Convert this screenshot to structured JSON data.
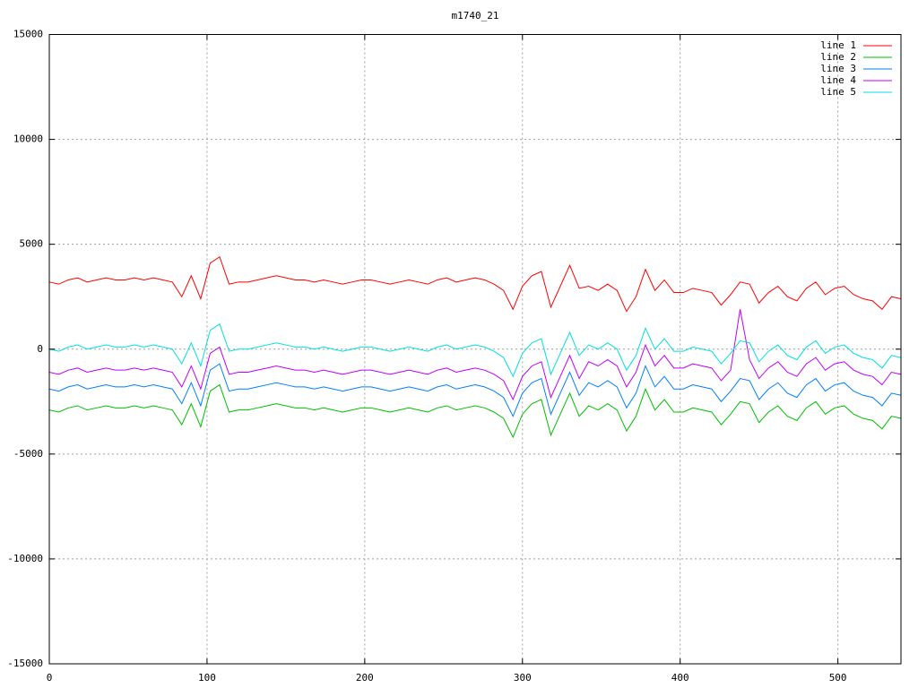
{
  "chart_data": {
    "type": "line",
    "title": "m1740_21",
    "x": [
      0,
      6,
      12,
      18,
      24,
      30,
      36,
      42,
      48,
      54,
      60,
      66,
      72,
      78,
      84,
      90,
      96,
      102,
      108,
      114,
      120,
      126,
      132,
      138,
      144,
      150,
      156,
      162,
      168,
      174,
      180,
      186,
      192,
      198,
      204,
      210,
      216,
      222,
      228,
      234,
      240,
      246,
      252,
      258,
      264,
      270,
      276,
      282,
      288,
      294,
      300,
      306,
      312,
      318,
      324,
      330,
      336,
      342,
      348,
      354,
      360,
      366,
      372,
      378,
      384,
      390,
      396,
      402,
      408,
      414,
      420,
      426,
      432,
      438,
      444,
      450,
      456,
      462,
      468,
      474,
      480,
      486,
      492,
      498,
      504,
      510,
      516,
      522,
      528,
      534,
      540
    ],
    "series": [
      {
        "name": "line 1",
        "color": "#ff0000",
        "values": [
          3200,
          3100,
          3300,
          3400,
          3200,
          3300,
          3400,
          3300,
          3300,
          3400,
          3300,
          3400,
          3300,
          3200,
          2500,
          3500,
          2400,
          4100,
          4400,
          3100,
          3200,
          3200,
          3300,
          3400,
          3500,
          3400,
          3300,
          3300,
          3200,
          3300,
          3200,
          3100,
          3200,
          3300,
          3300,
          3200,
          3100,
          3200,
          3300,
          3200,
          3100,
          3300,
          3400,
          3200,
          3300,
          3400,
          3300,
          3100,
          2800,
          1900,
          3000,
          3500,
          3700,
          2000,
          3000,
          4000,
          2900,
          3000,
          2800,
          3100,
          2800,
          1800,
          2500,
          3800,
          2800,
          3300,
          2700,
          2700,
          2900,
          2800,
          2700,
          2100,
          2600,
          3200,
          3100,
          2200,
          2700,
          3000,
          2500,
          2300,
          2900,
          3200,
          2600,
          2900,
          3000,
          2600,
          2400,
          2300,
          1900,
          2500,
          2400
        ]
      },
      {
        "name": "line 2",
        "color": "#00c000",
        "values": [
          -2900,
          -3000,
          -2800,
          -2700,
          -2900,
          -2800,
          -2700,
          -2800,
          -2800,
          -2700,
          -2800,
          -2700,
          -2800,
          -2900,
          -3600,
          -2600,
          -3700,
          -2000,
          -1700,
          -3000,
          -2900,
          -2900,
          -2800,
          -2700,
          -2600,
          -2700,
          -2800,
          -2800,
          -2900,
          -2800,
          -2900,
          -3000,
          -2900,
          -2800,
          -2800,
          -2900,
          -3000,
          -2900,
          -2800,
          -2900,
          -3000,
          -2800,
          -2700,
          -2900,
          -2800,
          -2700,
          -2800,
          -3000,
          -3300,
          -4200,
          -3100,
          -2600,
          -2400,
          -4100,
          -3100,
          -2100,
          -3200,
          -2700,
          -2900,
          -2600,
          -2900,
          -3900,
          -3200,
          -1900,
          -2900,
          -2400,
          -3000,
          -3000,
          -2800,
          -2900,
          -3000,
          -3600,
          -3100,
          -2500,
          -2600,
          -3500,
          -3000,
          -2700,
          -3200,
          -3400,
          -2800,
          -2500,
          -3100,
          -2800,
          -2700,
          -3100,
          -3300,
          -3400,
          -3800,
          -3200,
          -3300
        ]
      },
      {
        "name": "line 3",
        "color": "#0080ff",
        "values": [
          -1900,
          -2000,
          -1800,
          -1700,
          -1900,
          -1800,
          -1700,
          -1800,
          -1800,
          -1700,
          -1800,
          -1700,
          -1800,
          -1900,
          -2600,
          -1600,
          -2700,
          -1000,
          -700,
          -2000,
          -1900,
          -1900,
          -1800,
          -1700,
          -1600,
          -1700,
          -1800,
          -1800,
          -1900,
          -1800,
          -1900,
          -2000,
          -1900,
          -1800,
          -1800,
          -1900,
          -2000,
          -1900,
          -1800,
          -1900,
          -2000,
          -1800,
          -1700,
          -1900,
          -1800,
          -1700,
          -1800,
          -2000,
          -2300,
          -3200,
          -2100,
          -1600,
          -1400,
          -3100,
          -2100,
          -1100,
          -2200,
          -1600,
          -1800,
          -1500,
          -1800,
          -2800,
          -2100,
          -800,
          -1800,
          -1300,
          -1900,
          -1900,
          -1700,
          -1800,
          -1900,
          -2500,
          -2000,
          -1400,
          -1500,
          -2400,
          -1900,
          -1600,
          -2100,
          -2300,
          -1700,
          -1400,
          -2000,
          -1700,
          -1600,
          -2000,
          -2200,
          -2300,
          -2700,
          -2100,
          -2200
        ]
      },
      {
        "name": "line 4",
        "color": "#c000ff",
        "values": [
          -1100,
          -1200,
          -1000,
          -900,
          -1100,
          -1000,
          -900,
          -1000,
          -1000,
          -900,
          -1000,
          -900,
          -1000,
          -1100,
          -1800,
          -800,
          -1900,
          -200,
          100,
          -1200,
          -1100,
          -1100,
          -1000,
          -900,
          -800,
          -900,
          -1000,
          -1000,
          -1100,
          -1000,
          -1100,
          -1200,
          -1100,
          -1000,
          -1000,
          -1100,
          -1200,
          -1100,
          -1000,
          -1100,
          -1200,
          -1000,
          -900,
          -1100,
          -1000,
          -900,
          -1000,
          -1200,
          -1500,
          -2400,
          -1300,
          -800,
          -600,
          -2300,
          -1300,
          -300,
          -1400,
          -600,
          -800,
          -500,
          -800,
          -1800,
          -1100,
          200,
          -800,
          -300,
          -900,
          -900,
          -700,
          -800,
          -900,
          -1500,
          -1000,
          1900,
          -500,
          -1400,
          -900,
          -600,
          -1100,
          -1300,
          -700,
          -400,
          -1000,
          -700,
          -600,
          -1000,
          -1200,
          -1300,
          -1700,
          -1100,
          -1200
        ]
      },
      {
        "name": "line 5",
        "color": "#00e0e0",
        "values": [
          0,
          -100,
          100,
          200,
          0,
          100,
          200,
          100,
          100,
          200,
          100,
          200,
          100,
          0,
          -700,
          300,
          -800,
          900,
          1200,
          -100,
          0,
          0,
          100,
          200,
          300,
          200,
          100,
          100,
          0,
          100,
          0,
          -100,
          0,
          100,
          100,
          0,
          -100,
          0,
          100,
          0,
          -100,
          100,
          200,
          0,
          100,
          200,
          100,
          -100,
          -400,
          -1300,
          -200,
          300,
          500,
          -1200,
          -200,
          800,
          -300,
          200,
          0,
          300,
          0,
          -1000,
          -300,
          1000,
          0,
          500,
          -100,
          -100,
          100,
          0,
          -100,
          -700,
          -200,
          400,
          300,
          -600,
          -100,
          200,
          -300,
          -500,
          100,
          400,
          -200,
          100,
          200,
          -200,
          -400,
          -500,
          -900,
          -300,
          -400
        ]
      }
    ],
    "xlim": [
      0,
      540
    ],
    "xticks": [
      0,
      100,
      200,
      300,
      400,
      500
    ],
    "ylim": [
      -15000,
      15000
    ],
    "yticks": [
      -15000,
      -10000,
      -5000,
      0,
      5000,
      10000,
      15000
    ],
    "grid": true,
    "legend": "upper right"
  }
}
